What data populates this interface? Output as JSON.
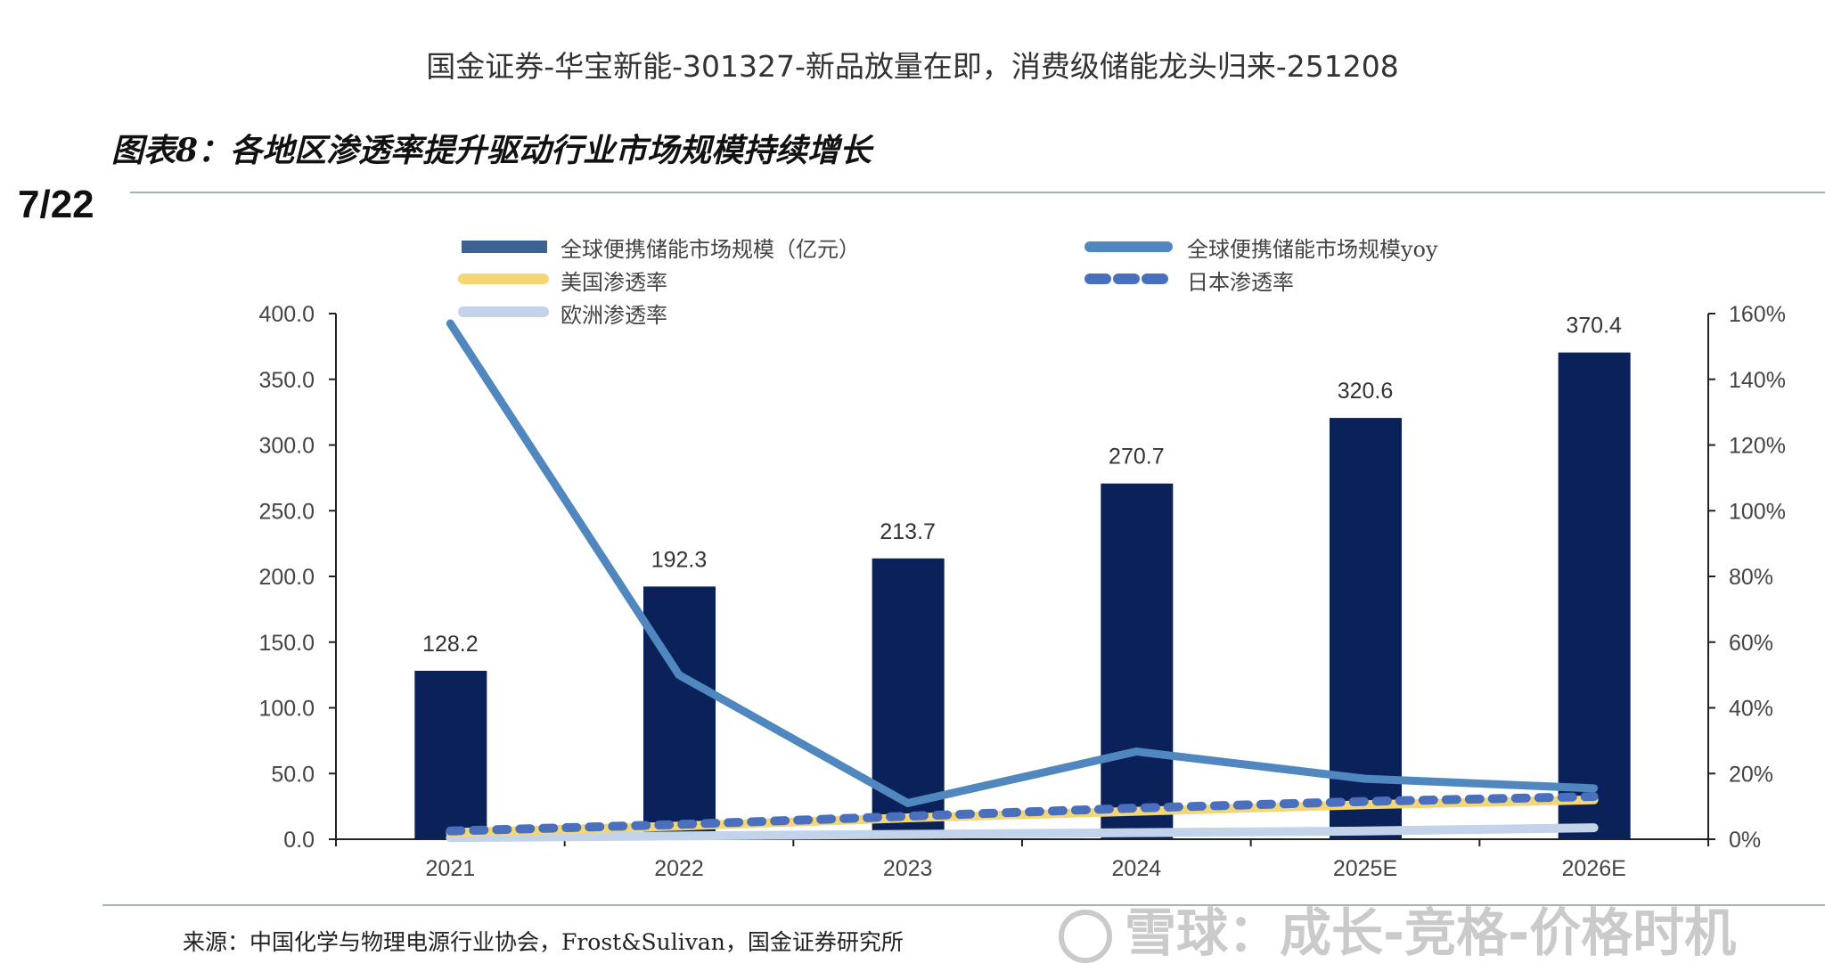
{
  "header": {
    "title": "国金证券-华宝新能-301327-新品放量在即，消费级储能龙头归来-251208"
  },
  "figure_title": "图表8：各地区渗透率提升驱动行业市场规模持续增长",
  "page_indicator": "7/22",
  "source": "来源：中国化学与物理电源行业协会，Frost&Sulivan，国金证券研究所",
  "watermark": "雪球：成长-竞格-价格时机",
  "chart_data": {
    "type": "bar+line",
    "title": "",
    "categories": [
      "2021",
      "2022",
      "2023",
      "2024",
      "2025E",
      "2026E"
    ],
    "left_axis": {
      "range": [
        0,
        400
      ],
      "ticks": [
        "0.0",
        "50.0",
        "100.0",
        "150.0",
        "200.0",
        "250.0",
        "300.0",
        "350.0",
        "400.0"
      ]
    },
    "right_axis": {
      "range": [
        0,
        160
      ],
      "ticks": [
        "0%",
        "20%",
        "40%",
        "60%",
        "80%",
        "100%",
        "120%",
        "140%",
        "160%"
      ]
    },
    "grid": false,
    "legend_placement": "top",
    "series": [
      {
        "name": "全球便携储能市场规模（亿元）",
        "type": "bar",
        "axis": "left",
        "color": "#0b2159",
        "values": [
          128.2,
          192.3,
          213.7,
          270.7,
          320.6,
          370.4
        ],
        "labels": [
          "128.2",
          "192.3",
          "213.7",
          "270.7",
          "320.6",
          "370.4"
        ]
      },
      {
        "name": "全球便携储能市场规模yoy",
        "type": "line",
        "axis": "right",
        "color": "#5087be",
        "values": [
          157,
          50,
          11,
          26.7,
          18.4,
          15.5
        ]
      },
      {
        "name": "美国渗透率",
        "type": "line",
        "axis": "right",
        "color": "#f4d675",
        "values": [
          2,
          4,
          6.5,
          8.5,
          10.5,
          12
        ]
      },
      {
        "name": "日本渗透率",
        "type": "line-dashed",
        "axis": "right",
        "color": "#4a70bd",
        "values": [
          2.5,
          4.5,
          7,
          9.5,
          11.5,
          13
        ]
      },
      {
        "name": "欧洲渗透率",
        "type": "line",
        "axis": "right",
        "color": "#c2d3ea",
        "values": [
          0.5,
          1,
          1.5,
          2,
          2.5,
          3.5
        ]
      }
    ]
  }
}
